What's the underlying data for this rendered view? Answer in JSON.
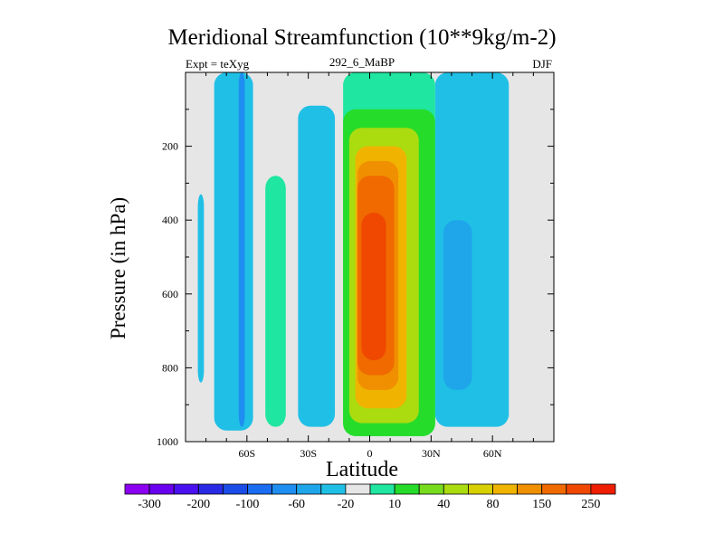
{
  "header": {
    "title": "Meridional Streamfunction (10**9kg/m-2)",
    "expt": "Expt = teXyg",
    "run": "292_6_MaBP",
    "season": "DJF"
  },
  "colors": {
    "background": "#ffffff",
    "plot_background": "#e6e6e6",
    "levels": [
      "#8b00f0",
      "#6a00f0",
      "#4a10ef",
      "#2a2ae6",
      "#1a4ce8",
      "#1a6cf0",
      "#1e8ef0",
      "#1fa6ea",
      "#20c0e6",
      "#e6e6e6",
      "#1fe6a0",
      "#26dc2a",
      "#78dc1e",
      "#aadc10",
      "#d8d000",
      "#f0b400",
      "#f09000",
      "#f06a00",
      "#f04800",
      "#f01e00"
    ]
  },
  "chart_data": {
    "type": "contour",
    "title": "Meridional Streamfunction (10**9kg/m-2)",
    "xlabel": "Latitude",
    "ylabel": "Pressure (in hPa)",
    "xlim": [
      -90,
      90
    ],
    "ylim": [
      1000,
      0
    ],
    "x_ticks": [
      {
        "value": -60,
        "label": "60S"
      },
      {
        "value": -30,
        "label": "30S"
      },
      {
        "value": 0,
        "label": "0"
      },
      {
        "value": 30,
        "label": "30N"
      },
      {
        "value": 60,
        "label": "60N"
      }
    ],
    "y_ticks": [
      {
        "value": 200,
        "label": "200"
      },
      {
        "value": 400,
        "label": "400"
      },
      {
        "value": 600,
        "label": "600"
      },
      {
        "value": 800,
        "label": "800"
      },
      {
        "value": 1000,
        "label": "1000"
      }
    ],
    "colorbar_labels": [
      "-300",
      "-200",
      "-100",
      "-60",
      "-20",
      "10",
      "40",
      "80",
      "150",
      "250"
    ],
    "regions": [
      {
        "lat_range": [
          -84,
          -81
        ],
        "p_range": [
          330,
          840
        ],
        "level_index": 8
      },
      {
        "lat_range": [
          -76,
          -57
        ],
        "p_range": [
          0,
          970
        ],
        "level_index": 8
      },
      {
        "lat_range": [
          -64,
          -61
        ],
        "p_range": [
          0,
          960
        ],
        "level_index": 6
      },
      {
        "lat_range": [
          -51,
          -41
        ],
        "p_range": [
          280,
          960
        ],
        "level_index": 10
      },
      {
        "lat_range": [
          -35,
          -17
        ],
        "p_range": [
          90,
          960
        ],
        "level_index": 8
      },
      {
        "lat_range": [
          -13,
          32
        ],
        "p_range": [
          0,
          985
        ],
        "level_index": 10
      },
      {
        "lat_range": [
          -13,
          32
        ],
        "p_range": [
          100,
          985
        ],
        "level_index": 11
      },
      {
        "lat_range": [
          -10,
          24
        ],
        "p_range": [
          150,
          950
        ],
        "level_index": 13
      },
      {
        "lat_range": [
          -7,
          18
        ],
        "p_range": [
          200,
          910
        ],
        "level_index": 15
      },
      {
        "lat_range": [
          -6,
          14
        ],
        "p_range": [
          240,
          860
        ],
        "level_index": 16
      },
      {
        "lat_range": [
          -6,
          12
        ],
        "p_range": [
          280,
          820
        ],
        "level_index": 17
      },
      {
        "lat_range": [
          -4,
          8
        ],
        "p_range": [
          380,
          780
        ],
        "level_index": 18
      },
      {
        "lat_range": [
          32,
          68
        ],
        "p_range": [
          0,
          960
        ],
        "level_index": 8
      },
      {
        "lat_range": [
          36,
          50
        ],
        "p_range": [
          400,
          860
        ],
        "level_index": 7
      }
    ]
  }
}
